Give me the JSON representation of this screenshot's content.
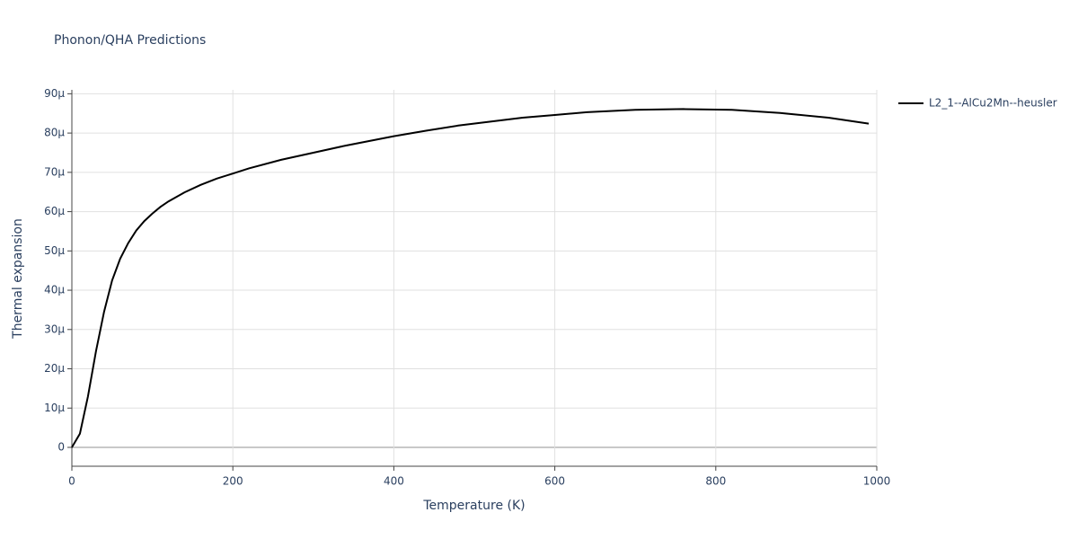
{
  "chart_data": {
    "type": "line",
    "title": "Phonon/QHA Predictions",
    "x_label": "Temperature (K)",
    "y_label": "Thermal expansion",
    "series": [
      {
        "name": "L2_1--AlCu2Mn--heusler",
        "color": "#000000",
        "x": [
          0,
          10,
          20,
          30,
          40,
          50,
          60,
          70,
          80,
          90,
          100,
          110,
          120,
          140,
          160,
          180,
          200,
          220,
          260,
          300,
          340,
          400,
          440,
          480,
          520,
          560,
          600,
          640,
          700,
          760,
          820,
          880,
          940,
          990
        ],
        "values": [
          0,
          3.5e-06,
          1.3e-05,
          2.45e-05,
          3.45e-05,
          4.25e-05,
          4.8e-05,
          5.2e-05,
          5.52e-05,
          5.76e-05,
          5.95e-05,
          6.12e-05,
          6.26e-05,
          6.49e-05,
          6.68e-05,
          6.84e-05,
          6.97e-05,
          7.1e-05,
          7.32e-05,
          7.5e-05,
          7.68e-05,
          7.92e-05,
          8.06e-05,
          8.19e-05,
          8.29e-05,
          8.39e-05,
          8.46e-05,
          8.53e-05,
          8.59e-05,
          8.61e-05,
          8.59e-05,
          8.51e-05,
          8.39e-05,
          8.24e-05
        ]
      }
    ],
    "xlim": [
      0,
      1000
    ],
    "xticks": [
      0,
      200,
      400,
      600,
      800,
      1000
    ],
    "ylim": [
      -4.8e-06,
      9.1e-05
    ],
    "yticks": [
      0,
      {
        "value": 1e-05,
        "label": "10μ"
      },
      {
        "value": 2e-05,
        "label": "20μ"
      },
      {
        "value": 3e-05,
        "label": "30μ"
      },
      {
        "value": 4e-05,
        "label": "40μ"
      },
      {
        "value": 5e-05,
        "label": "50μ"
      },
      {
        "value": 6e-05,
        "label": "60μ"
      },
      {
        "value": 7e-05,
        "label": "70μ"
      },
      {
        "value": 8e-05,
        "label": "80μ"
      },
      {
        "value": 9e-05,
        "label": "90μ"
      }
    ],
    "grid": true,
    "legend": "right"
  }
}
